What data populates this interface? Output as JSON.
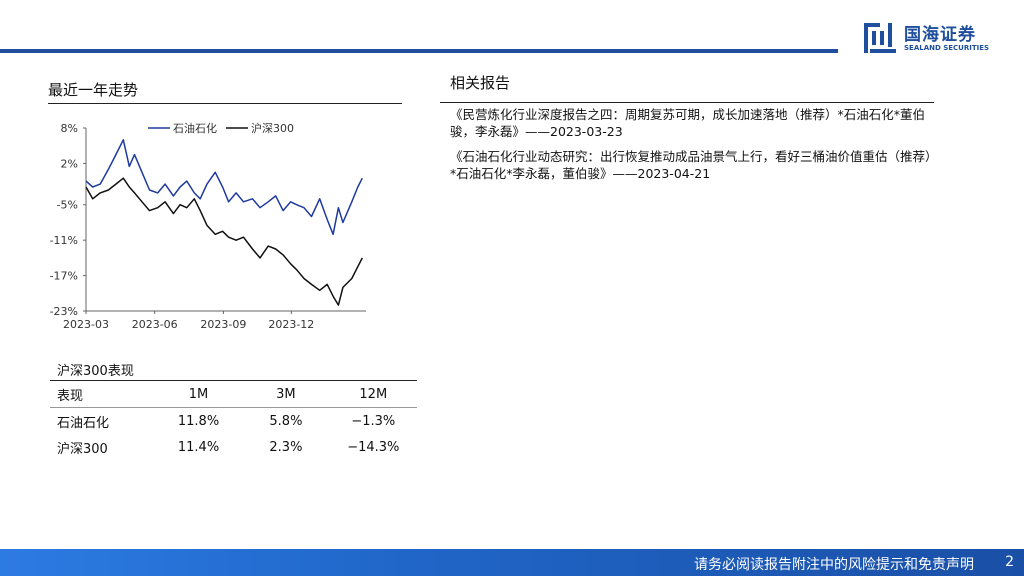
{
  "brand": {
    "name_cn": "国海证券",
    "name_en": "SEALAND SECURITIES",
    "color": "#1f4e9d"
  },
  "left_section": {
    "title": "最近一年走势"
  },
  "right_section": {
    "title": "相关报告"
  },
  "reports": [
    "《民营炼化行业深度报告之四：周期复苏可期，成长加速落地（推荐）*石油石化*董伯骏，李永磊》——2023-03-23",
    "《石油石化行业动态研究：出行恢复推动成品油景气上行，看好三桶油价值重估（推荐）*石油石化*李永磊，董伯骏》——2023-04-21"
  ],
  "chart_data": {
    "type": "line",
    "title": "",
    "xlabel": "",
    "ylabel": "",
    "x_ticks": [
      "2023-03",
      "2023-06",
      "2023-09",
      "2023-12"
    ],
    "y_ticks": [
      "8%",
      "2%",
      "-5%",
      "-11%",
      "-17%",
      "-23%"
    ],
    "y_tick_values": [
      8,
      2,
      -5,
      -11,
      -17,
      -23
    ],
    "ylim": [
      -23,
      8
    ],
    "x_range": [
      "2023-03",
      "2024-03"
    ],
    "grid": false,
    "legend_position": "top",
    "series": [
      {
        "name": "石油石化",
        "color": "#1f3a9e",
        "x": [
          "2023-03-01",
          "2023-03-10",
          "2023-03-20",
          "2023-03-31",
          "2023-04-10",
          "2023-04-20",
          "2023-04-28",
          "2023-05-05",
          "2023-05-15",
          "2023-05-25",
          "2023-06-05",
          "2023-06-15",
          "2023-06-26",
          "2023-07-05",
          "2023-07-14",
          "2023-07-24",
          "2023-08-01",
          "2023-08-10",
          "2023-08-21",
          "2023-08-31",
          "2023-09-08",
          "2023-09-18",
          "2023-09-28",
          "2023-10-10",
          "2023-10-20",
          "2023-10-31",
          "2023-11-10",
          "2023-11-20",
          "2023-11-30",
          "2023-12-08",
          "2023-12-18",
          "2023-12-28",
          "2024-01-08",
          "2024-01-18",
          "2024-01-26",
          "2024-02-02",
          "2024-02-08",
          "2024-02-20",
          "2024-02-28",
          "2024-03-05"
        ],
        "values": [
          -1.0,
          -2.0,
          -1.5,
          1.0,
          3.5,
          6.0,
          1.5,
          3.5,
          0.5,
          -2.5,
          -3.0,
          -1.5,
          -3.5,
          -2.0,
          -1.0,
          -3.0,
          -4.0,
          -1.5,
          0.5,
          -2.0,
          -4.5,
          -3.0,
          -4.5,
          -4.0,
          -5.5,
          -4.5,
          -3.5,
          -6.0,
          -4.5,
          -5.0,
          -5.5,
          -7.0,
          -4.0,
          -7.5,
          -10.0,
          -5.5,
          -8.0,
          -4.5,
          -2.0,
          -0.5
        ]
      },
      {
        "name": "沪深300",
        "color": "#111111",
        "x": [
          "2023-03-01",
          "2023-03-10",
          "2023-03-20",
          "2023-03-31",
          "2023-04-10",
          "2023-04-20",
          "2023-04-28",
          "2023-05-05",
          "2023-05-15",
          "2023-05-25",
          "2023-06-05",
          "2023-06-15",
          "2023-06-26",
          "2023-07-05",
          "2023-07-14",
          "2023-07-24",
          "2023-08-01",
          "2023-08-10",
          "2023-08-21",
          "2023-08-31",
          "2023-09-08",
          "2023-09-18",
          "2023-09-28",
          "2023-10-10",
          "2023-10-20",
          "2023-10-31",
          "2023-11-10",
          "2023-11-20",
          "2023-11-30",
          "2023-12-08",
          "2023-12-18",
          "2023-12-28",
          "2024-01-08",
          "2024-01-18",
          "2024-01-26",
          "2024-02-02",
          "2024-02-08",
          "2024-02-20",
          "2024-02-28",
          "2024-03-05"
        ],
        "values": [
          -2.0,
          -4.0,
          -3.0,
          -2.5,
          -1.5,
          -0.5,
          -2.0,
          -3.0,
          -4.5,
          -6.0,
          -5.5,
          -4.5,
          -6.5,
          -5.0,
          -5.5,
          -4.0,
          -6.0,
          -8.5,
          -10.0,
          -9.5,
          -10.5,
          -11.0,
          -10.5,
          -12.5,
          -14.0,
          -12.0,
          -12.5,
          -13.5,
          -15.0,
          -16.0,
          -17.5,
          -18.5,
          -19.5,
          -18.5,
          -20.5,
          -22.0,
          -19.0,
          -17.5,
          -15.5,
          -14.0
        ]
      }
    ]
  },
  "performance": {
    "title": "沪深300表现",
    "headers": [
      "表现",
      "1M",
      "3M",
      "12M"
    ],
    "rows": [
      [
        "石油石化",
        "11.8%",
        "5.8%",
        "−1.3%"
      ],
      [
        "沪深300",
        "11.4%",
        "2.3%",
        "−14.3%"
      ]
    ]
  },
  "footer": {
    "disclaimer": "请务必阅读报告附注中的风险提示和免责声明",
    "page": "2"
  }
}
